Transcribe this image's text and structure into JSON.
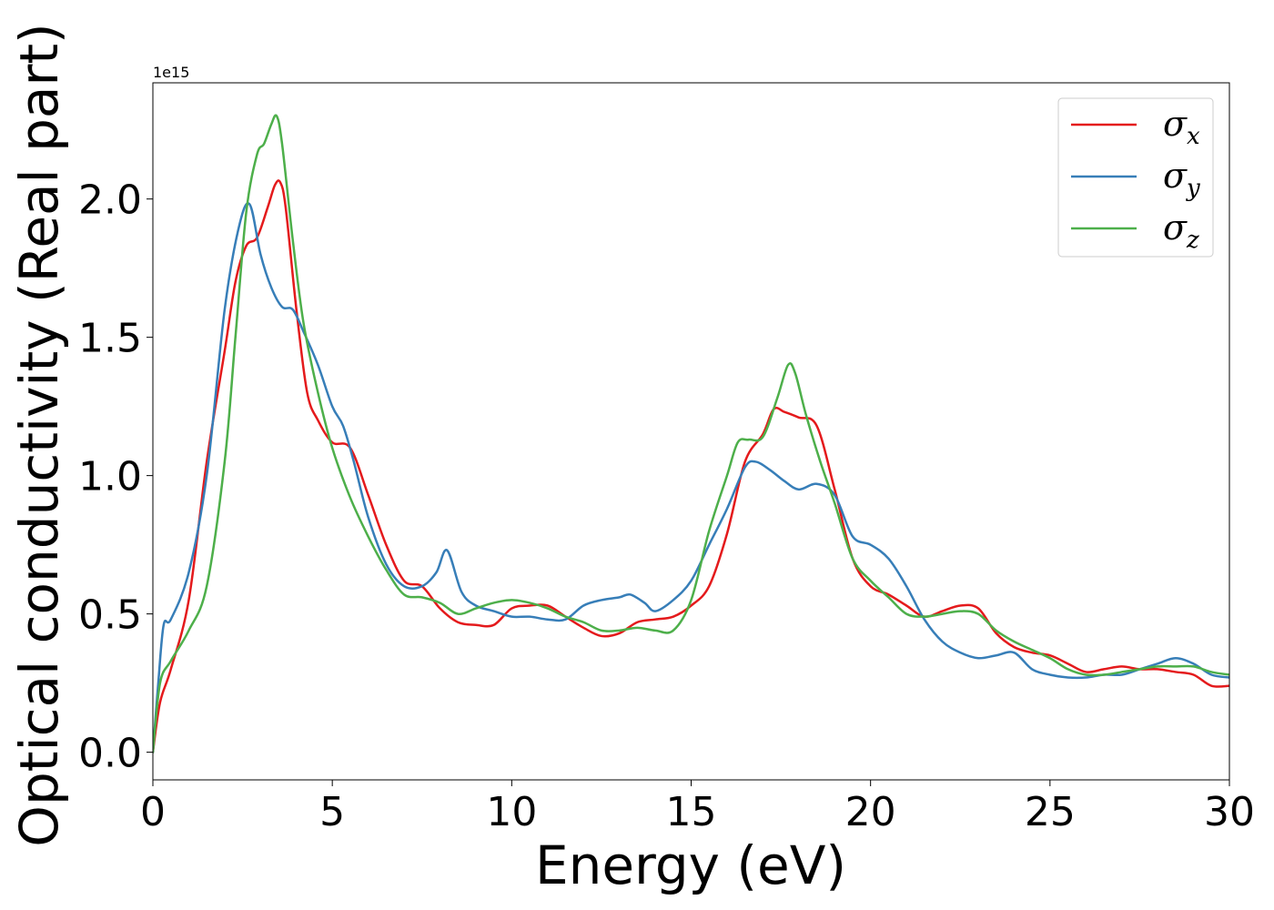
{
  "chart_data": {
    "type": "line",
    "xlabel": "Energy (eV)",
    "ylabel": "Optical conductivity (Real part)",
    "y_offset_text": "1e15",
    "xlim": [
      0,
      30
    ],
    "ylim": [
      -0.1,
      2.42
    ],
    "x_ticks": [
      0,
      5,
      10,
      15,
      20,
      25,
      30
    ],
    "x_tick_labels": [
      "0",
      "5",
      "10",
      "15",
      "20",
      "25",
      "30"
    ],
    "y_ticks": [
      0.0,
      0.5,
      1.0,
      1.5,
      2.0
    ],
    "y_tick_labels": [
      "0.0",
      "0.5",
      "1.0",
      "1.5",
      "2.0"
    ],
    "grid": false,
    "legend_position": "top-right",
    "series": [
      {
        "name": "σx",
        "symbol": "σ",
        "sub": "x",
        "color": "#e41a1c",
        "x": [
          0,
          0.2,
          0.5,
          1.0,
          1.5,
          2.0,
          2.3,
          2.6,
          2.9,
          3.2,
          3.4,
          3.55,
          3.7,
          4.0,
          4.3,
          4.6,
          5.0,
          5.5,
          6.0,
          6.5,
          7.0,
          7.5,
          8.0,
          8.5,
          9.0,
          9.5,
          10.0,
          10.5,
          11.0,
          11.5,
          12.0,
          12.5,
          13.0,
          13.5,
          14.0,
          14.5,
          15.0,
          15.5,
          16.0,
          16.5,
          17.0,
          17.3,
          17.6,
          18.0,
          18.5,
          19.0,
          19.5,
          20.0,
          20.5,
          21.0,
          21.5,
          22.0,
          22.5,
          23.0,
          23.5,
          24.0,
          24.5,
          25.0,
          25.5,
          26.0,
          26.5,
          27.0,
          27.5,
          28.0,
          28.5,
          29.0,
          29.5,
          30.0
        ],
        "y": [
          0.0,
          0.18,
          0.3,
          0.55,
          1.05,
          1.45,
          1.7,
          1.83,
          1.86,
          1.97,
          2.05,
          2.06,
          1.97,
          1.6,
          1.3,
          1.2,
          1.12,
          1.1,
          0.93,
          0.75,
          0.62,
          0.6,
          0.52,
          0.47,
          0.46,
          0.46,
          0.52,
          0.53,
          0.53,
          0.49,
          0.45,
          0.42,
          0.43,
          0.47,
          0.48,
          0.49,
          0.53,
          0.6,
          0.79,
          1.05,
          1.15,
          1.24,
          1.23,
          1.21,
          1.18,
          0.95,
          0.7,
          0.6,
          0.57,
          0.53,
          0.49,
          0.51,
          0.53,
          0.52,
          0.43,
          0.38,
          0.36,
          0.35,
          0.32,
          0.29,
          0.3,
          0.31,
          0.3,
          0.3,
          0.29,
          0.28,
          0.24,
          0.24
        ]
      },
      {
        "name": "σy",
        "symbol": "σ",
        "sub": "y",
        "color": "#377eb8",
        "x": [
          0,
          0.15,
          0.3,
          0.5,
          1.0,
          1.5,
          2.0,
          2.4,
          2.7,
          3.0,
          3.3,
          3.6,
          3.9,
          4.2,
          4.6,
          5.0,
          5.3,
          5.6,
          6.0,
          6.5,
          7.0,
          7.5,
          7.9,
          8.2,
          8.6,
          9.0,
          9.5,
          10.0,
          10.5,
          11.0,
          11.5,
          12.0,
          12.5,
          13.0,
          13.3,
          13.7,
          14.0,
          14.5,
          15.0,
          15.5,
          16.0,
          16.5,
          16.8,
          17.2,
          17.6,
          18.0,
          18.5,
          19.0,
          19.5,
          20.0,
          20.5,
          21.0,
          21.5,
          22.0,
          22.5,
          23.0,
          23.5,
          24.0,
          24.5,
          25.0,
          25.5,
          26.0,
          26.5,
          27.0,
          27.5,
          28.0,
          28.5,
          29.0,
          29.5,
          30.0
        ],
        "y": [
          0.0,
          0.25,
          0.46,
          0.48,
          0.65,
          1.0,
          1.6,
          1.9,
          1.98,
          1.8,
          1.68,
          1.61,
          1.6,
          1.52,
          1.4,
          1.25,
          1.18,
          1.05,
          0.85,
          0.68,
          0.6,
          0.6,
          0.65,
          0.73,
          0.58,
          0.53,
          0.51,
          0.49,
          0.49,
          0.48,
          0.48,
          0.53,
          0.55,
          0.56,
          0.57,
          0.54,
          0.51,
          0.55,
          0.62,
          0.75,
          0.88,
          1.03,
          1.05,
          1.02,
          0.98,
          0.95,
          0.97,
          0.93,
          0.78,
          0.75,
          0.7,
          0.6,
          0.48,
          0.4,
          0.36,
          0.34,
          0.35,
          0.36,
          0.3,
          0.28,
          0.27,
          0.27,
          0.28,
          0.28,
          0.3,
          0.32,
          0.34,
          0.32,
          0.28,
          0.27
        ]
      },
      {
        "name": "σz",
        "symbol": "σ",
        "sub": "z",
        "color": "#4daf4a",
        "x": [
          0,
          0.2,
          0.5,
          1.0,
          1.5,
          2.0,
          2.3,
          2.6,
          2.9,
          3.1,
          3.3,
          3.45,
          3.6,
          3.9,
          4.2,
          4.6,
          5.0,
          5.5,
          6.0,
          6.5,
          7.0,
          7.5,
          8.0,
          8.5,
          9.0,
          9.5,
          10.0,
          10.5,
          11.0,
          11.5,
          12.0,
          12.5,
          13.0,
          13.5,
          14.0,
          14.5,
          15.0,
          15.5,
          16.0,
          16.3,
          16.6,
          17.0,
          17.4,
          17.7,
          17.9,
          18.2,
          18.6,
          19.0,
          19.5,
          20.0,
          20.5,
          21.0,
          21.5,
          22.0,
          22.5,
          23.0,
          23.5,
          24.0,
          24.5,
          25.0,
          25.5,
          26.0,
          26.5,
          27.0,
          27.5,
          28.0,
          28.5,
          29.0,
          29.5,
          30.0
        ],
        "y": [
          0.0,
          0.25,
          0.33,
          0.44,
          0.6,
          1.05,
          1.5,
          1.95,
          2.16,
          2.2,
          2.27,
          2.3,
          2.2,
          1.85,
          1.55,
          1.3,
          1.1,
          0.92,
          0.78,
          0.66,
          0.57,
          0.56,
          0.54,
          0.5,
          0.52,
          0.54,
          0.55,
          0.54,
          0.52,
          0.49,
          0.47,
          0.44,
          0.44,
          0.45,
          0.44,
          0.44,
          0.55,
          0.8,
          1.0,
          1.12,
          1.13,
          1.14,
          1.28,
          1.4,
          1.37,
          1.22,
          1.05,
          0.9,
          0.7,
          0.62,
          0.56,
          0.5,
          0.49,
          0.5,
          0.51,
          0.5,
          0.44,
          0.4,
          0.37,
          0.34,
          0.3,
          0.28,
          0.28,
          0.29,
          0.3,
          0.31,
          0.31,
          0.31,
          0.29,
          0.28
        ]
      }
    ]
  }
}
